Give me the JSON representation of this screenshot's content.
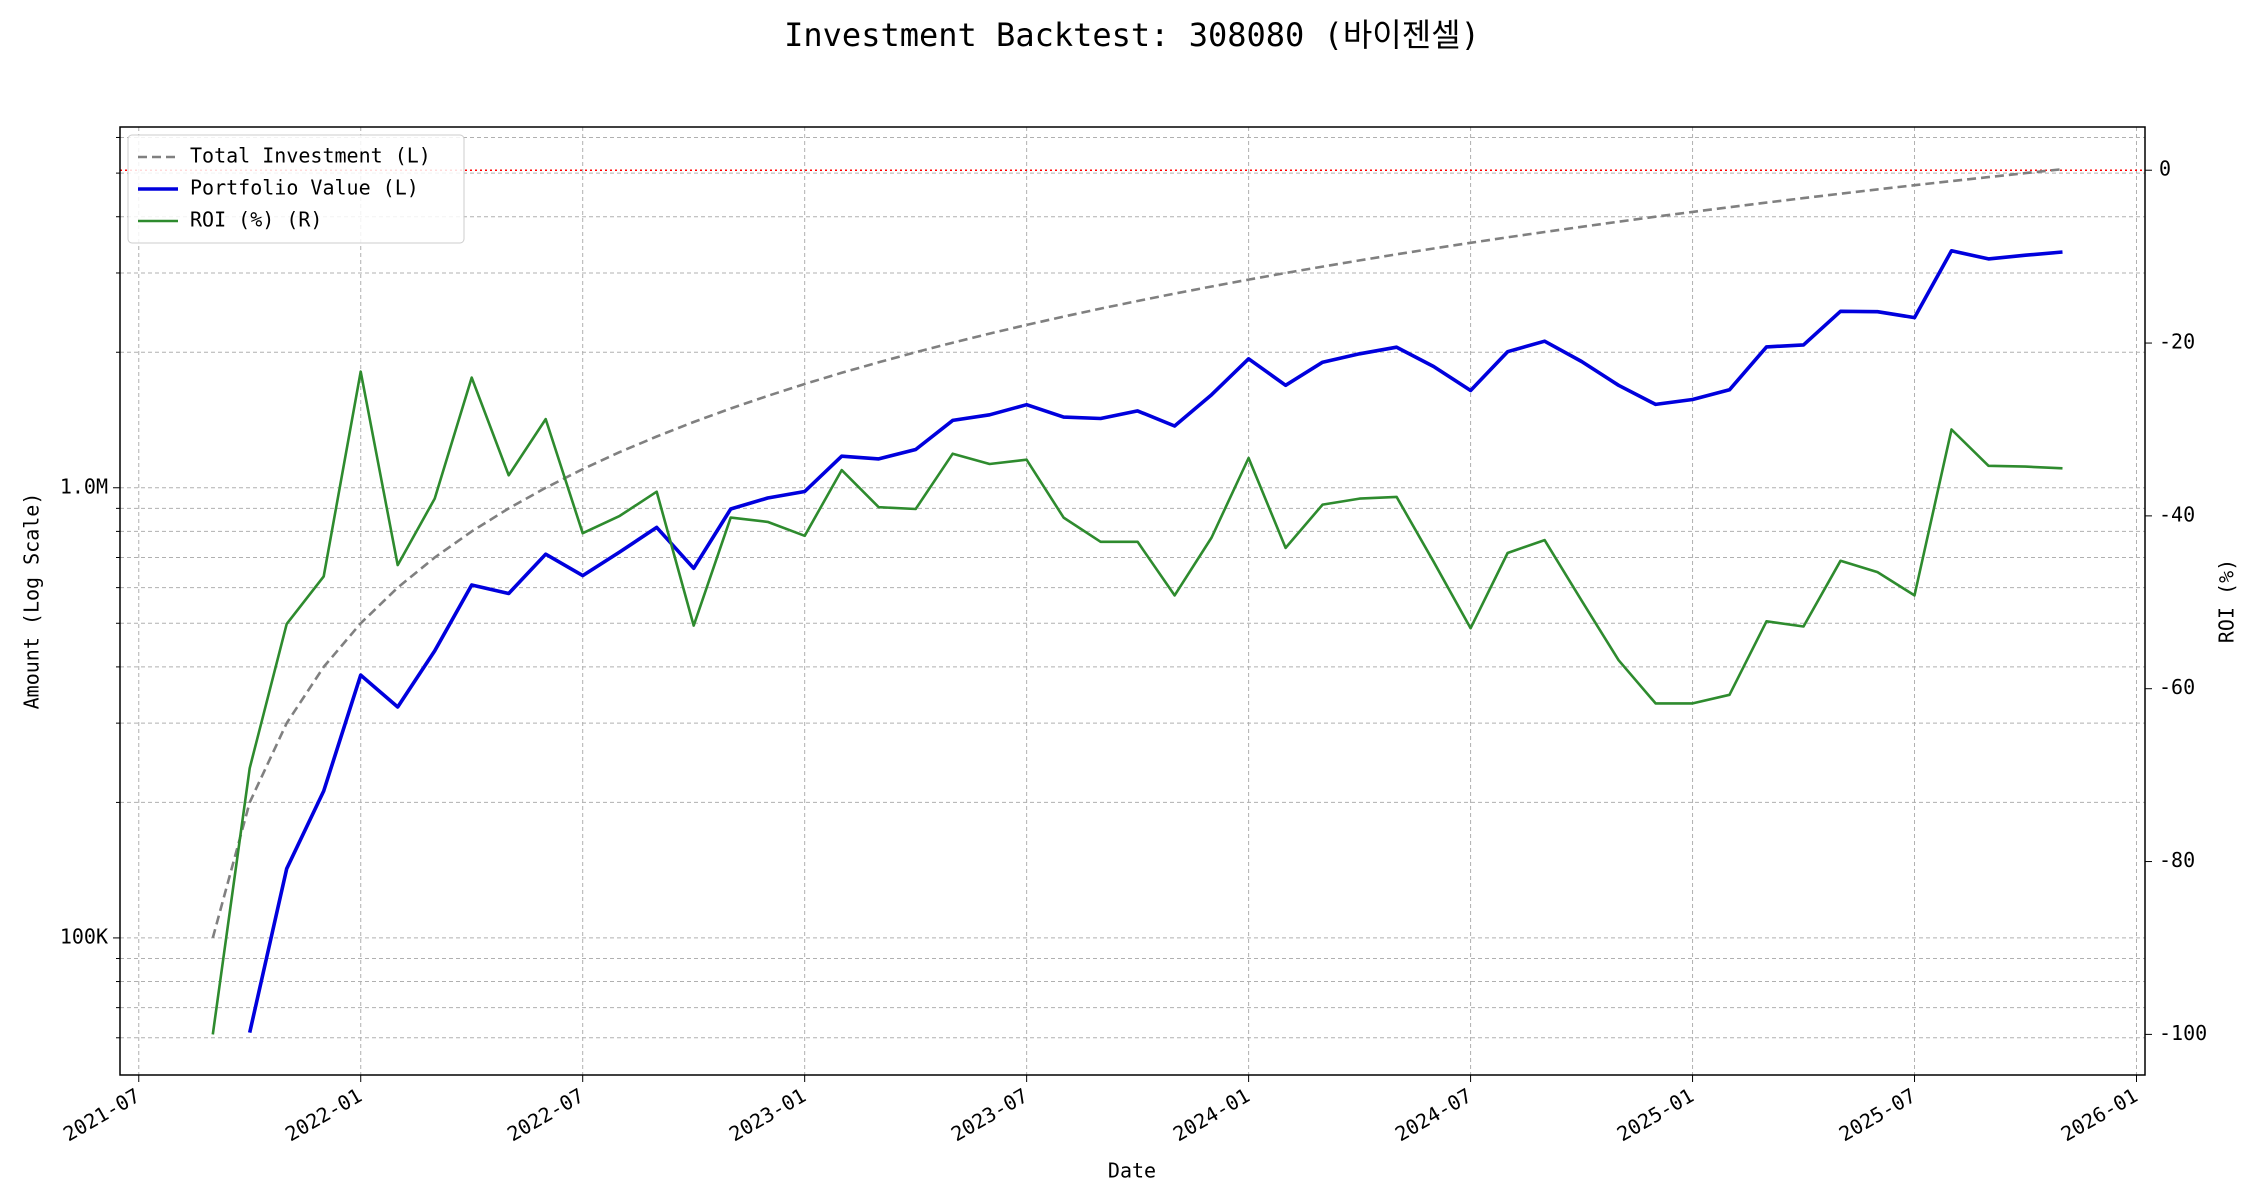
{
  "chart_data": {
    "type": "line",
    "title": "Investment Backtest: 308080 (바이젠셀)",
    "xlabel": "Date",
    "ylabel": "Amount (Log Scale)",
    "y2label": "ROI (%)",
    "x": [
      "2021-09",
      "2021-10",
      "2021-11",
      "2021-12",
      "2022-01",
      "2022-02",
      "2022-03",
      "2022-04",
      "2022-05",
      "2022-06",
      "2022-07",
      "2022-08",
      "2022-09",
      "2022-10",
      "2022-11",
      "2022-12",
      "2023-01",
      "2023-02",
      "2023-03",
      "2023-04",
      "2023-05",
      "2023-06",
      "2023-07",
      "2023-08",
      "2023-09",
      "2023-10",
      "2023-11",
      "2023-12",
      "2024-01",
      "2024-02",
      "2024-03",
      "2024-04",
      "2024-05",
      "2024-06",
      "2024-07",
      "2024-08",
      "2024-09",
      "2024-10",
      "2024-11",
      "2024-12",
      "2025-01",
      "2025-02",
      "2025-03",
      "2025-04",
      "2025-05",
      "2025-06",
      "2025-07",
      "2025-08",
      "2025-09",
      "2025-10",
      "2025-11"
    ],
    "series": [
      {
        "name": "Total Investment (L)",
        "color": "#808080",
        "linestyle": "dashed",
        "axis": "y",
        "values": [
          100000,
          200000,
          300000,
          400000,
          500000,
          600000,
          700000,
          800000,
          900000,
          1000000,
          1100000,
          1200000,
          1300000,
          1400000,
          1500000,
          1600000,
          1700000,
          1800000,
          1900000,
          2000000,
          2100000,
          2200000,
          2300000,
          2400000,
          2500000,
          2600000,
          2700000,
          2800000,
          2900000,
          3000000,
          3100000,
          3200000,
          3300000,
          3400000,
          3500000,
          3600000,
          3700000,
          3800000,
          3900000,
          4000000,
          4100000,
          4200000,
          4300000,
          4400000,
          4500000,
          4600000,
          4700000,
          4800000,
          4900000,
          5000000,
          5100000
        ]
      },
      {
        "name": "Portfolio Value (L)",
        "color": "#0000dd",
        "linestyle": "solid",
        "axis": "y",
        "values": [
          null,
          61600,
          142500,
          212000,
          383500,
          325800,
          434000,
          608000,
          582300,
          712000,
          638000,
          720000,
          816400,
          662200,
          897000,
          948800,
          980900,
          1175400,
          1159000,
          1216000,
          1411200,
          1452000,
          1529500,
          1435200,
          1425000,
          1482000,
          1371600,
          1610000,
          1934300,
          1689000,
          1900300,
          1984000,
          2052600,
          1859800,
          1645000,
          2005200,
          2116400,
          1907600,
          1688700,
          1532000,
          1570300,
          1650600,
          2055400,
          2076800,
          2466000,
          2461000,
          2387600,
          3360000,
          3224200,
          3285000,
          3340500
        ]
      },
      {
        "name": "ROI (%) (R)",
        "color": "#2e8b2e",
        "linestyle": "solid",
        "axis": "y2",
        "values": [
          -100,
          -69.2,
          -52.5,
          -47,
          -23.3,
          -45.7,
          -38,
          -24,
          -35.3,
          -28.8,
          -42,
          -40,
          -37.2,
          -52.7,
          -40.2,
          -40.7,
          -42.3,
          -34.7,
          -39,
          -39.2,
          -32.8,
          -34,
          -33.5,
          -40.2,
          -43,
          -43,
          -49.2,
          -42.5,
          -33.3,
          -43.7,
          -38.7,
          -38,
          -37.8,
          -45.3,
          -53,
          -44.3,
          -42.8,
          -49.8,
          -56.7,
          -61.7,
          -61.7,
          -60.7,
          -52.2,
          -52.8,
          -45.2,
          -46.5,
          -49.2,
          -30,
          -34.2,
          -34.3,
          -34.5
        ]
      }
    ],
    "xlim": [
      "2021-06-16",
      "2026-01-08"
    ],
    "xticks": [
      "2021-07",
      "2022-01",
      "2022-07",
      "2023-01",
      "2023-07",
      "2024-01",
      "2024-07",
      "2025-01",
      "2025-07",
      "2026-01"
    ],
    "ylim": [
      49600,
      6330000
    ],
    "log_scale": true,
    "yticks": [
      {
        "value": 100000,
        "label": "100K"
      },
      {
        "value": 1000000,
        "label": "1.0M"
      }
    ],
    "yminor_ticks": [
      60000,
      70000,
      80000,
      90000,
      200000,
      300000,
      400000,
      500000,
      600000,
      700000,
      800000,
      900000,
      2000000,
      3000000,
      4000000,
      5000000,
      6000000
    ],
    "y2lim": [
      -104.7,
      5
    ],
    "y2ticks": [
      0,
      -20,
      -40,
      -60,
      -80,
      -100
    ],
    "hline": {
      "value": 0,
      "axis": "y2",
      "color": "#ff0000"
    },
    "grid": true,
    "legend": "upper left",
    "ylabel_color": "#0000dd",
    "y2label_color": "#2e8b2e"
  }
}
